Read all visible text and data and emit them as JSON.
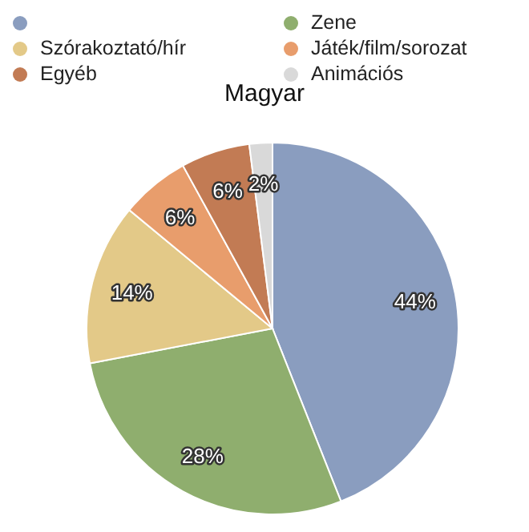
{
  "chart_data": {
    "type": "pie",
    "title": "Magyar",
    "categories": [
      null,
      "Zene",
      "Szórakoztató/hír",
      "Játék/film/sorozat",
      "Egyéb",
      "Animációs"
    ],
    "values": [
      44,
      28,
      14,
      6,
      6,
      2
    ],
    "value_labels": [
      "44%",
      "28%",
      "14%",
      "6%",
      "6%",
      "2%"
    ],
    "colors": [
      "#8a9dbf",
      "#8fae6e",
      "#e3c988",
      "#e89d6c",
      "#c27b54",
      "#d9d9d9"
    ],
    "legend": "top"
  }
}
